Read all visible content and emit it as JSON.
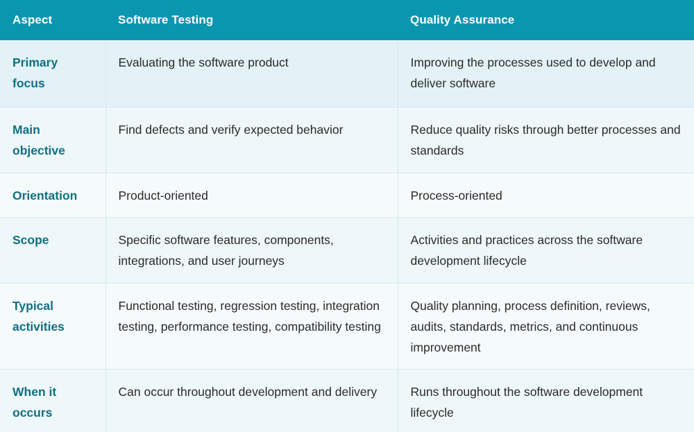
{
  "table": {
    "headers": [
      "Aspect",
      "Software Testing",
      "Quality Assurance"
    ],
    "rows": [
      {
        "aspect": "Primary focus",
        "testing": "Evaluating the software product",
        "qa": "Improving the processes used to develop and deliver software"
      },
      {
        "aspect": "Main objective",
        "testing": "Find defects and verify expected behavior",
        "qa": "Reduce quality risks through better processes and standards"
      },
      {
        "aspect": "Orientation",
        "testing": "Product-oriented",
        "qa": "Process-oriented"
      },
      {
        "aspect": "Scope",
        "testing": "Specific software features, components, integrations, and user journeys",
        "qa": "Activities and practices across the software development lifecycle"
      },
      {
        "aspect": "Typical activities",
        "testing": "Functional testing, regression testing, integration testing, performance testing, compatibility testing",
        "qa": "Quality planning, process definition, reviews, audits, standards, metrics, and continuous improvement"
      },
      {
        "aspect": "When it occurs",
        "testing": "Can occur throughout development and delivery",
        "qa": "Runs throughout the software development lifecycle"
      }
    ]
  },
  "colors": {
    "header_bg": "#0b96b0",
    "aspect_text": "#116f82",
    "body_text": "#2b2b2b"
  }
}
